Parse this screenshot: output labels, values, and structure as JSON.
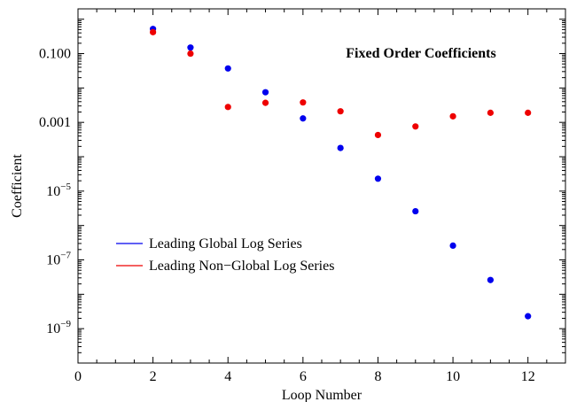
{
  "chart_data": {
    "type": "scatter",
    "title": "Fixed Order Coefficients",
    "xlabel": "Loop Number",
    "ylabel": "Coefficient",
    "xlim": [
      0,
      13
    ],
    "ylim": [
      1e-10,
      2
    ],
    "y_scale": "log",
    "x_ticks": [
      {
        "value": 0,
        "label": "0"
      },
      {
        "value": 2,
        "label": "2"
      },
      {
        "value": 4,
        "label": "4"
      },
      {
        "value": 6,
        "label": "6"
      },
      {
        "value": 8,
        "label": "8"
      },
      {
        "value": 10,
        "label": "10"
      },
      {
        "value": 12,
        "label": "12"
      }
    ],
    "y_ticks": [
      {
        "value": 0.1,
        "label": "0.100",
        "mant": "0.100",
        "exp": ""
      },
      {
        "value": 0.001,
        "label": "0.001",
        "mant": "0.001",
        "exp": ""
      },
      {
        "value": 1e-05,
        "label": "10^-5",
        "mant": "10",
        "exp": "−5"
      },
      {
        "value": 1e-07,
        "label": "10^-7",
        "mant": "10",
        "exp": "−7"
      },
      {
        "value": 1e-09,
        "label": "10^-9",
        "mant": "10",
        "exp": "−9"
      }
    ],
    "legend_position": "lower-left",
    "grid": false,
    "series": [
      {
        "name": "Leading Global Log Series",
        "color": "#0000ee",
        "x": [
          2,
          3,
          4,
          5,
          6,
          7,
          8,
          9,
          10,
          11,
          12
        ],
        "y": [
          0.52,
          0.15,
          0.037,
          0.0075,
          0.0013,
          0.00018,
          2.3e-05,
          2.6e-06,
          2.6e-07,
          2.6e-08,
          2.3e-09
        ]
      },
      {
        "name": "Leading Non−Global Log Series",
        "color": "#ee0000",
        "x": [
          2,
          3,
          4,
          5,
          6,
          7,
          8,
          9,
          10,
          11,
          12
        ],
        "y": [
          0.42,
          0.1,
          0.0028,
          0.0037,
          0.0038,
          0.0021,
          0.00043,
          0.00076,
          0.0015,
          0.0019,
          0.0019
        ]
      }
    ]
  }
}
